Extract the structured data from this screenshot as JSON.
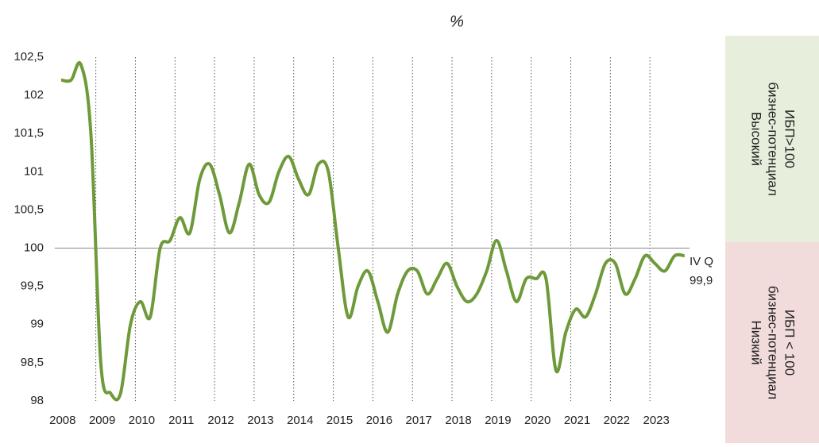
{
  "chart_data": {
    "type": "line",
    "title": "%",
    "x": [
      2008.125,
      2008.375,
      2008.625,
      2008.875,
      2009.125,
      2009.375,
      2009.625,
      2009.875,
      2010.125,
      2010.375,
      2010.625,
      2010.875,
      2011.125,
      2011.375,
      2011.625,
      2011.875,
      2012.125,
      2012.375,
      2012.625,
      2012.875,
      2013.125,
      2013.375,
      2013.625,
      2013.875,
      2014.125,
      2014.375,
      2014.625,
      2014.875,
      2015.125,
      2015.375,
      2015.625,
      2015.875,
      2016.125,
      2016.375,
      2016.625,
      2016.875,
      2017.125,
      2017.375,
      2017.625,
      2017.875,
      2018.125,
      2018.375,
      2018.625,
      2018.875,
      2019.125,
      2019.375,
      2019.625,
      2019.875,
      2020.125,
      2020.375,
      2020.625,
      2020.875,
      2021.125,
      2021.375,
      2021.625,
      2021.875,
      2022.125,
      2022.375,
      2022.625,
      2022.875,
      2023.125,
      2023.375,
      2023.625,
      2023.875
    ],
    "series": [
      {
        "color": "#6e9a3a",
        "values": [
          102.2,
          102.2,
          102.4,
          101.5,
          98.5,
          98.1,
          98.1,
          99.0,
          99.3,
          99.1,
          100.0,
          100.1,
          100.4,
          100.2,
          100.9,
          101.1,
          100.7,
          100.2,
          100.6,
          101.1,
          100.7,
          100.6,
          101.0,
          101.2,
          100.9,
          100.7,
          101.1,
          101.0,
          100.0,
          99.1,
          99.5,
          99.7,
          99.3,
          98.9,
          99.4,
          99.7,
          99.7,
          99.4,
          99.6,
          99.8,
          99.5,
          99.3,
          99.4,
          99.7,
          100.1,
          99.7,
          99.3,
          99.6,
          99.6,
          99.6,
          98.4,
          98.9,
          99.2,
          99.1,
          99.4,
          99.8,
          99.8,
          99.4,
          99.6,
          99.9,
          99.8,
          99.7,
          99.9,
          99.9
        ]
      }
    ],
    "xlim": [
      2008,
      2024
    ],
    "xticks": [
      2008,
      2009,
      2010,
      2011,
      2012,
      2013,
      2014,
      2015,
      2016,
      2017,
      2018,
      2019,
      2020,
      2021,
      2022,
      2023
    ],
    "ylim": [
      98,
      102.5
    ],
    "yticks": [
      98,
      {
        "value": 98.5,
        "label": "98,5"
      },
      99,
      {
        "value": 99.5,
        "label": "99,5"
      },
      100,
      {
        "value": 100.5,
        "label": "100,5"
      },
      101,
      {
        "value": 101.5,
        "label": "101,5"
      },
      102,
      {
        "value": 102.5,
        "label": "102,5"
      }
    ],
    "reference_line": 100,
    "annotation": {
      "label": "IV Q",
      "value_label": "99,9"
    },
    "zones": [
      {
        "lines": [
          "Высокий",
          "бизнес-потенциал",
          "ИБП>100"
        ],
        "color": "#e7efdc"
      },
      {
        "lines": [
          "Низкий",
          "бизнес-потенциал",
          "ИБП < 100"
        ],
        "color": "#f2dcdb"
      }
    ]
  }
}
